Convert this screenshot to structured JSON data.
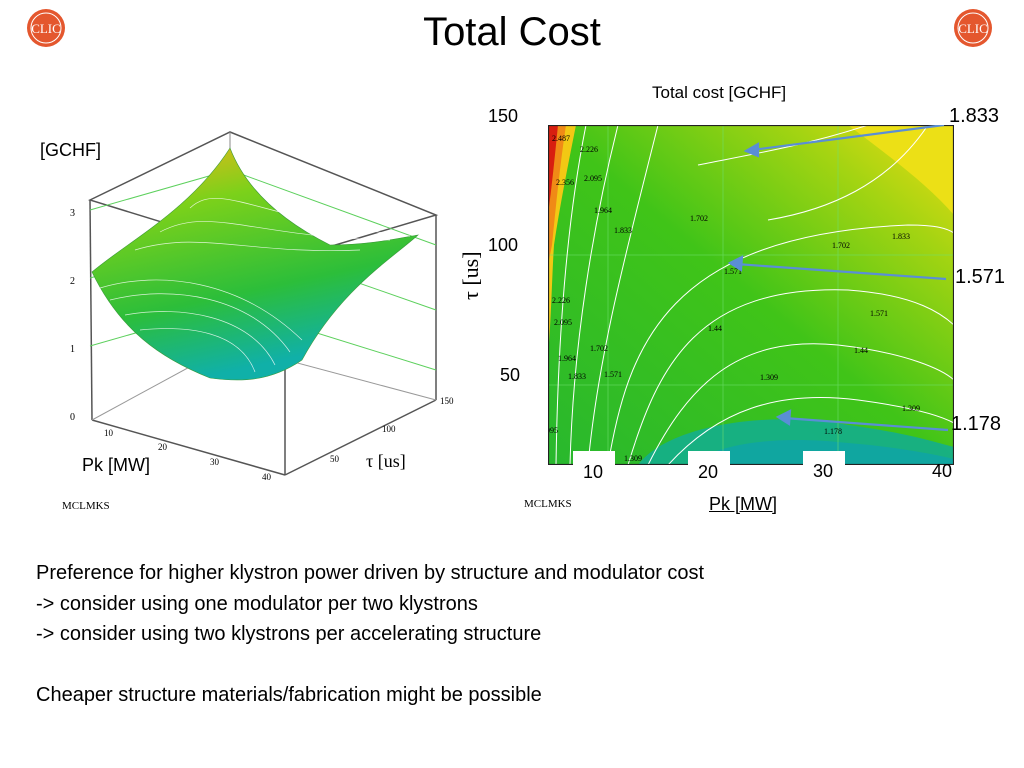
{
  "slide": {
    "title": "Total Cost",
    "logo_text": "CLIC",
    "logo_color": "#e4572e"
  },
  "surface_plot": {
    "zlabel": "[GCHF]",
    "xlabel": "Pk [MW]",
    "ylabel": "τ [us]",
    "z_ticks": [
      "0",
      "1",
      "2",
      "3"
    ],
    "x_ticks": [
      "10",
      "20",
      "30",
      "40"
    ],
    "y_ticks": [
      "50",
      "100",
      "150"
    ],
    "source": "MCLMKS"
  },
  "contour_plot": {
    "title": "Total cost [GCHF]",
    "xlabel": "Pk [MW]",
    "ylabel": "τ [us]",
    "x_ticks": [
      "10",
      "20",
      "30",
      "40"
    ],
    "y_ticks": [
      "50",
      "100",
      "150"
    ],
    "contour_labels": [
      "2.487",
      "2.356",
      "2.226",
      "2.095",
      "1.964",
      "1.833",
      "1.702",
      "1.571",
      "1.44",
      "1.309",
      "1.178"
    ],
    "callouts": [
      "1.833",
      "1.571",
      "1.178"
    ],
    "source": "MCLMKS",
    "colors": {
      "low": "#12a9a0",
      "mid": "#3cc21a",
      "high": "#f2dc12",
      "max": "#d81e10"
    }
  },
  "text": {
    "line1": "Preference for higher klystron power driven by structure and modulator cost",
    "line2": "-> consider using one modulator per two klystrons",
    "line3": "-> consider using two klystrons per accelerating structure",
    "line4": "Cheaper structure materials/fabrication might be possible"
  }
}
